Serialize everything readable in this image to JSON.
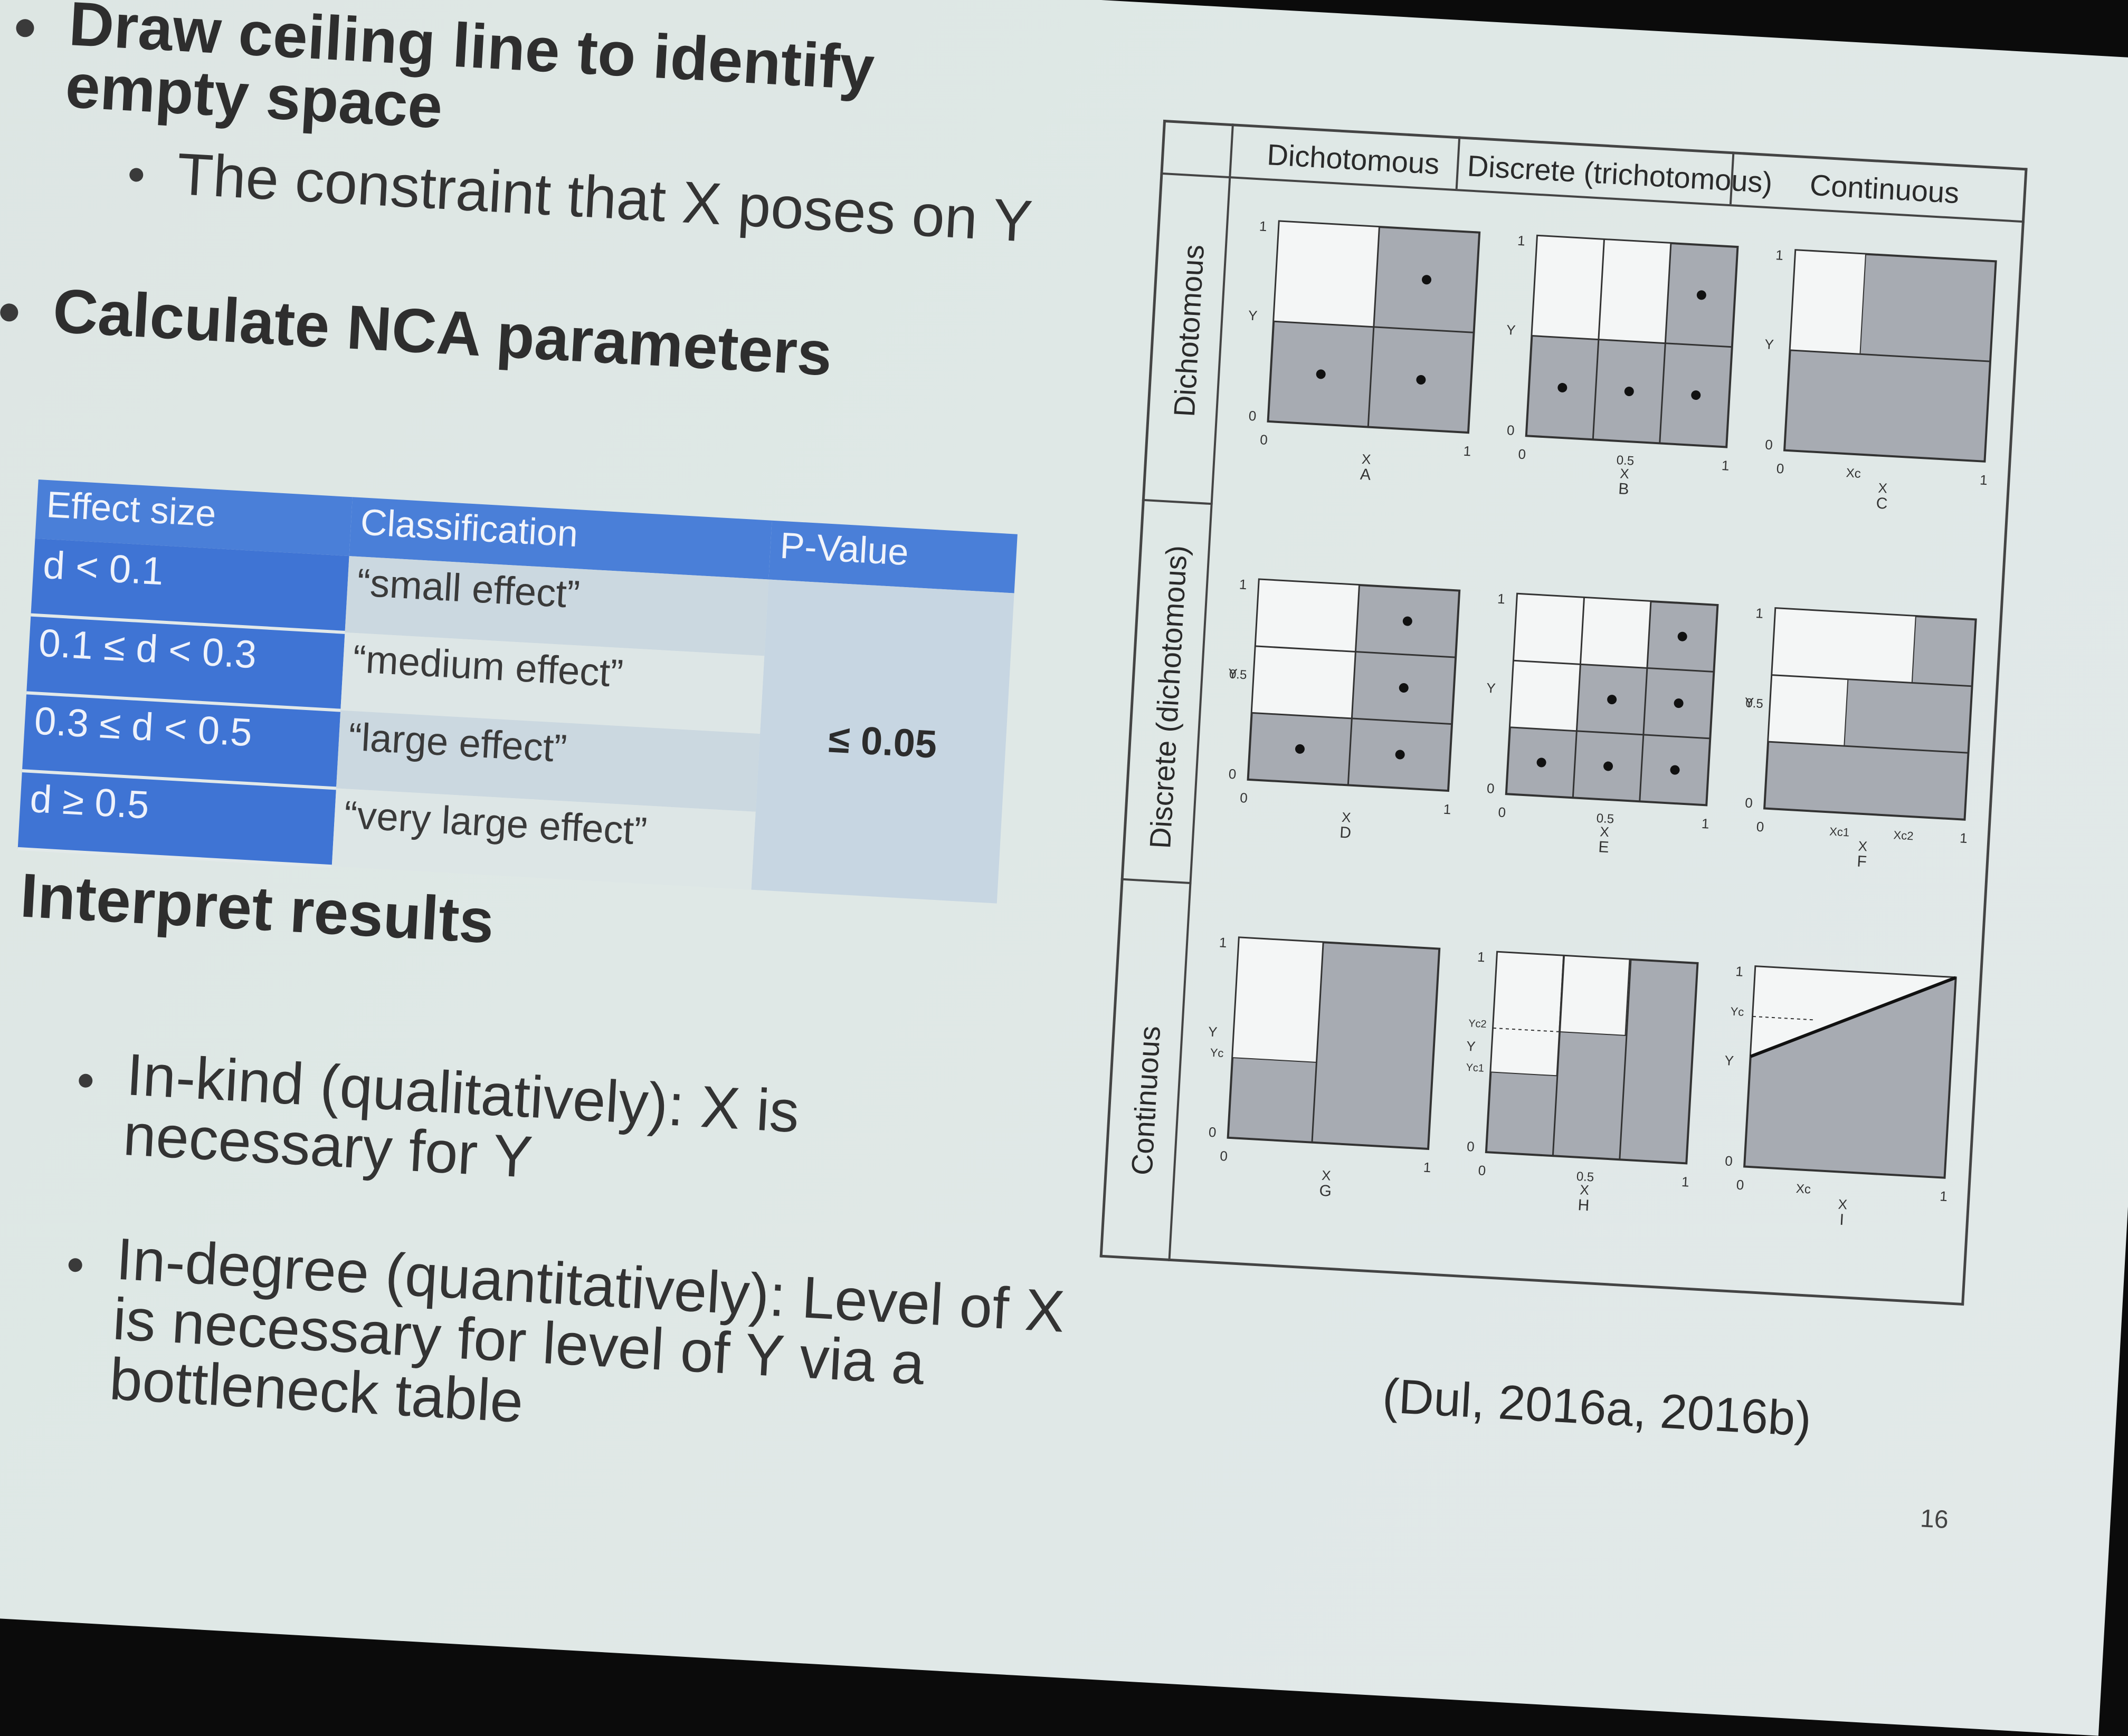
{
  "bullets": {
    "b1": "Draw ceiling line to identify empty space",
    "b1_sub": "The constraint that X poses on Y",
    "b2": "Calculate NCA parameters",
    "b3": "Interpret results",
    "b3_sub1": "In-kind (qualitatively): X is necessary for Y",
    "b3_sub2": "In-degree (quantitatively): Level of X is necessary for level of Y via a bottleneck table"
  },
  "nca_table": {
    "headers": [
      "Effect size",
      "Classification",
      "P-Value"
    ],
    "rows": [
      {
        "effect": "d < 0.1",
        "class": "“small effect”"
      },
      {
        "effect": "0.1 ≤ d < 0.3",
        "class": "“medium effect”"
      },
      {
        "effect": "0.3 ≤ d < 0.5",
        "class": "“large effect”"
      },
      {
        "effect": "d ≥ 0.5",
        "class": "“very large effect”"
      }
    ],
    "p_value": "≤ 0.05"
  },
  "figure": {
    "col_headers": [
      "Dichotomous",
      "Discrete (trichotomous)",
      "Continuous"
    ],
    "row_headers": [
      "Dichotomous",
      "Discrete (dichotomous)",
      "Continuous"
    ],
    "panel_letters": [
      "A",
      "B",
      "C",
      "D",
      "E",
      "F",
      "G",
      "H",
      "I"
    ],
    "axis": {
      "x": "X",
      "y": "Y",
      "zero": "0",
      "one": "1",
      "half": "0.5",
      "xc": "Xc",
      "yc": "Yc",
      "xc1": "Xc1",
      "xc2": "Xc2",
      "yc1": "Yc1",
      "yc2": "Yc2"
    }
  },
  "citation": "(Dul, 2016a, 2016b)",
  "page_number": "16"
}
